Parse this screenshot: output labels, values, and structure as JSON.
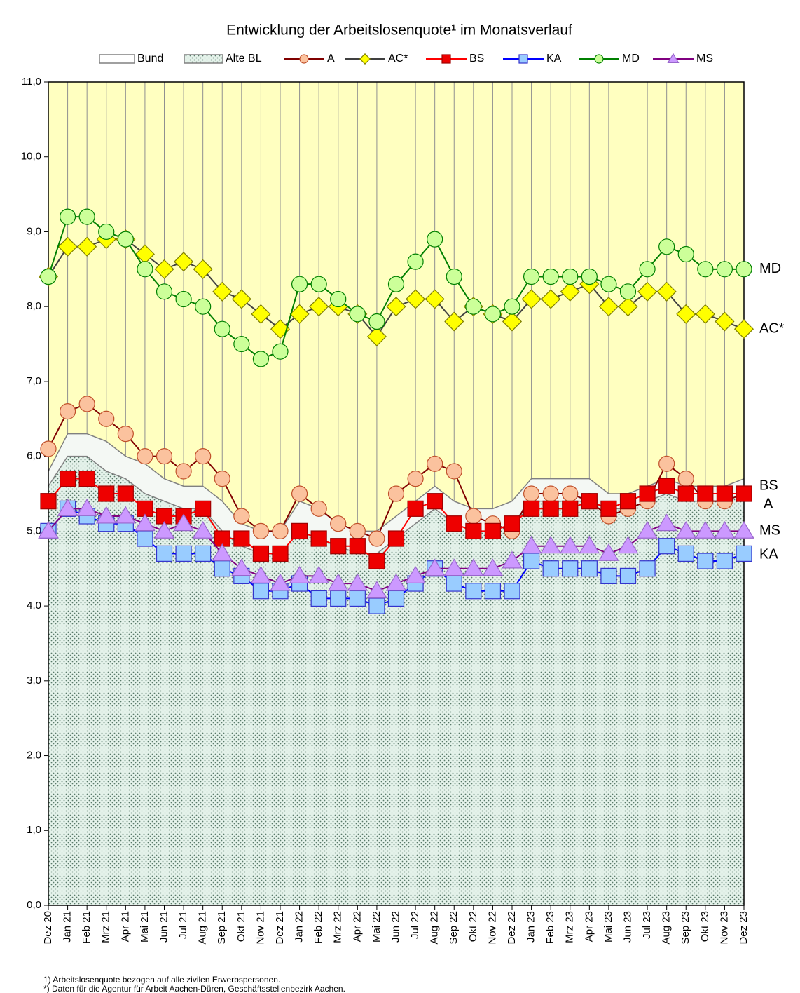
{
  "chart_data": {
    "type": "line",
    "title": "Entwicklung der Arbeitslosenquote¹ im Monatsverlauf",
    "categories": [
      "Dez 20",
      "Jan 21",
      "Feb 21",
      "Mrz 21",
      "Apr 21",
      "Mai 21",
      "Jun 21",
      "Jul 21",
      "Aug 21",
      "Sep 21",
      "Okt 21",
      "Nov 21",
      "Dez 21",
      "Jan 22",
      "Feb 22",
      "Mrz 22",
      "Apr 22",
      "Mai 22",
      "Jun 22",
      "Jul 22",
      "Aug 22",
      "Sep 22",
      "Okt 22",
      "Nov 22",
      "Dez 22",
      "Jan 23",
      "Feb 23",
      "Mrz 23",
      "Apr 23",
      "Mai 23",
      "Jun 23",
      "Jul 23",
      "Aug 23",
      "Sep 23",
      "Okt 23",
      "Nov 23",
      "Dez 23"
    ],
    "ylim": [
      0,
      11
    ],
    "yticks": [
      {
        "value": 0,
        "label": "0,0"
      },
      {
        "value": 1,
        "label": "1,0"
      },
      {
        "value": 2,
        "label": "2,0"
      },
      {
        "value": 3,
        "label": "3,0"
      },
      {
        "value": 4,
        "label": "4,0"
      },
      {
        "value": 5,
        "label": "5,0"
      },
      {
        "value": 6,
        "label": "6,0"
      },
      {
        "value": 7,
        "label": "7,0"
      },
      {
        "value": 8,
        "label": "8,0"
      },
      {
        "value": 9,
        "label": "9,0"
      },
      {
        "value": 10,
        "label": "10,0"
      },
      {
        "value": 11,
        "label": "11,0"
      }
    ],
    "grid": "x",
    "plot_background": "#ffffc0",
    "series": [
      {
        "name": "Bund",
        "style": "area",
        "color": "#808080",
        "fill": "#f4f8f4",
        "values": [
          5.8,
          6.3,
          6.3,
          6.2,
          6.0,
          5.9,
          5.7,
          5.6,
          5.6,
          5.4,
          5.1,
          5.0,
          5.0,
          5.4,
          5.3,
          5.1,
          5.0,
          5.0,
          5.2,
          5.4,
          5.6,
          5.4,
          5.3,
          5.3,
          5.4,
          5.7,
          5.7,
          5.7,
          5.7,
          5.5,
          5.5,
          5.6,
          5.7,
          5.6,
          5.6,
          5.6,
          5.7
        ]
      },
      {
        "name": "Alte BL",
        "style": "area",
        "color": "#808080",
        "fill": "#e8f4ec",
        "values": [
          5.6,
          6.0,
          6.0,
          5.8,
          5.7,
          5.5,
          5.4,
          5.3,
          5.3,
          5.0,
          4.8,
          4.7,
          4.7,
          5.0,
          4.9,
          4.8,
          4.7,
          4.7,
          4.9,
          5.1,
          5.3,
          5.1,
          5.0,
          5.0,
          5.1,
          5.4,
          5.4,
          5.4,
          5.4,
          5.3,
          5.3,
          5.4,
          5.5,
          5.4,
          5.4,
          5.4,
          5.5
        ]
      },
      {
        "name": "A",
        "style": "line",
        "color": "#800000",
        "marker": "circle",
        "marker_fill": "#fbc29e",
        "marker_stroke": "#c0502a",
        "values": [
          6.1,
          6.6,
          6.7,
          6.5,
          6.3,
          6.0,
          6.0,
          5.8,
          6.0,
          5.7,
          5.2,
          5.0,
          5.0,
          5.5,
          5.3,
          5.1,
          5.0,
          4.9,
          5.5,
          5.7,
          5.9,
          5.8,
          5.2,
          5.1,
          5.0,
          5.5,
          5.5,
          5.5,
          5.4,
          5.2,
          5.3,
          5.4,
          5.9,
          5.7,
          5.4,
          5.4,
          5.5
        ]
      },
      {
        "name": "AC*",
        "style": "line",
        "color": "#404040",
        "marker": "diamond",
        "marker_fill": "#ffff00",
        "marker_stroke": "#808000",
        "values": [
          8.4,
          8.8,
          8.8,
          8.9,
          8.9,
          8.7,
          8.5,
          8.6,
          8.5,
          8.2,
          8.1,
          7.9,
          7.7,
          7.9,
          8.0,
          8.0,
          7.9,
          7.6,
          8.0,
          8.1,
          8.1,
          7.8,
          8.0,
          7.9,
          7.8,
          8.1,
          8.1,
          8.2,
          8.3,
          8.0,
          8.0,
          8.2,
          8.2,
          7.9,
          7.9,
          7.8,
          7.7
        ]
      },
      {
        "name": "BS",
        "style": "line",
        "color": "#ff0000",
        "marker": "square",
        "marker_fill": "#ee0000",
        "marker_stroke": "#a00000",
        "values": [
          5.4,
          5.7,
          5.7,
          5.5,
          5.5,
          5.3,
          5.2,
          5.2,
          5.3,
          4.9,
          4.9,
          4.7,
          4.7,
          5.0,
          4.9,
          4.8,
          4.8,
          4.6,
          4.9,
          5.3,
          5.4,
          5.1,
          5.0,
          5.0,
          5.1,
          5.3,
          5.3,
          5.3,
          5.4,
          5.3,
          5.4,
          5.5,
          5.6,
          5.5,
          5.5,
          5.5,
          5.5
        ]
      },
      {
        "name": "KA",
        "style": "line",
        "color": "#0000ff",
        "marker": "square",
        "marker_fill": "#99ccff",
        "marker_stroke": "#3333cc",
        "values": [
          5.0,
          5.3,
          5.2,
          5.1,
          5.1,
          4.9,
          4.7,
          4.7,
          4.7,
          4.5,
          4.4,
          4.2,
          4.2,
          4.3,
          4.1,
          4.1,
          4.1,
          4.0,
          4.1,
          4.3,
          4.5,
          4.3,
          4.2,
          4.2,
          4.2,
          4.6,
          4.5,
          4.5,
          4.5,
          4.4,
          4.4,
          4.5,
          4.8,
          4.7,
          4.6,
          4.6,
          4.7
        ]
      },
      {
        "name": "MD",
        "style": "line",
        "color": "#008000",
        "marker": "circle",
        "marker_fill": "#ccff99",
        "marker_stroke": "#008000",
        "values": [
          8.4,
          9.2,
          9.2,
          9.0,
          8.9,
          8.5,
          8.2,
          8.1,
          8.0,
          7.7,
          7.5,
          7.3,
          7.4,
          8.3,
          8.3,
          8.1,
          7.9,
          7.8,
          8.3,
          8.6,
          8.9,
          8.4,
          8.0,
          7.9,
          8.0,
          8.4,
          8.4,
          8.4,
          8.4,
          8.3,
          8.2,
          8.5,
          8.8,
          8.7,
          8.5,
          8.5,
          8.5
        ]
      },
      {
        "name": "MS",
        "style": "line",
        "color": "#800080",
        "marker": "triangle",
        "marker_fill": "#cc99ff",
        "marker_stroke": "#9966cc",
        "values": [
          5.0,
          5.3,
          5.3,
          5.2,
          5.2,
          5.1,
          5.0,
          5.1,
          5.0,
          4.7,
          4.5,
          4.4,
          4.3,
          4.4,
          4.4,
          4.3,
          4.3,
          4.2,
          4.3,
          4.4,
          4.5,
          4.5,
          4.5,
          4.5,
          4.6,
          4.8,
          4.8,
          4.8,
          4.8,
          4.7,
          4.8,
          5.0,
          5.1,
          5.0,
          5.0,
          5.0,
          5.0
        ]
      }
    ],
    "footnotes": [
      "1) Arbeitslosenquote bezogen auf alle zivilen Erwerbspersonen.",
      "*) Daten für die Agentur für Arbeit Aachen-Düren, Geschäftsstellenbezirk Aachen."
    ]
  }
}
